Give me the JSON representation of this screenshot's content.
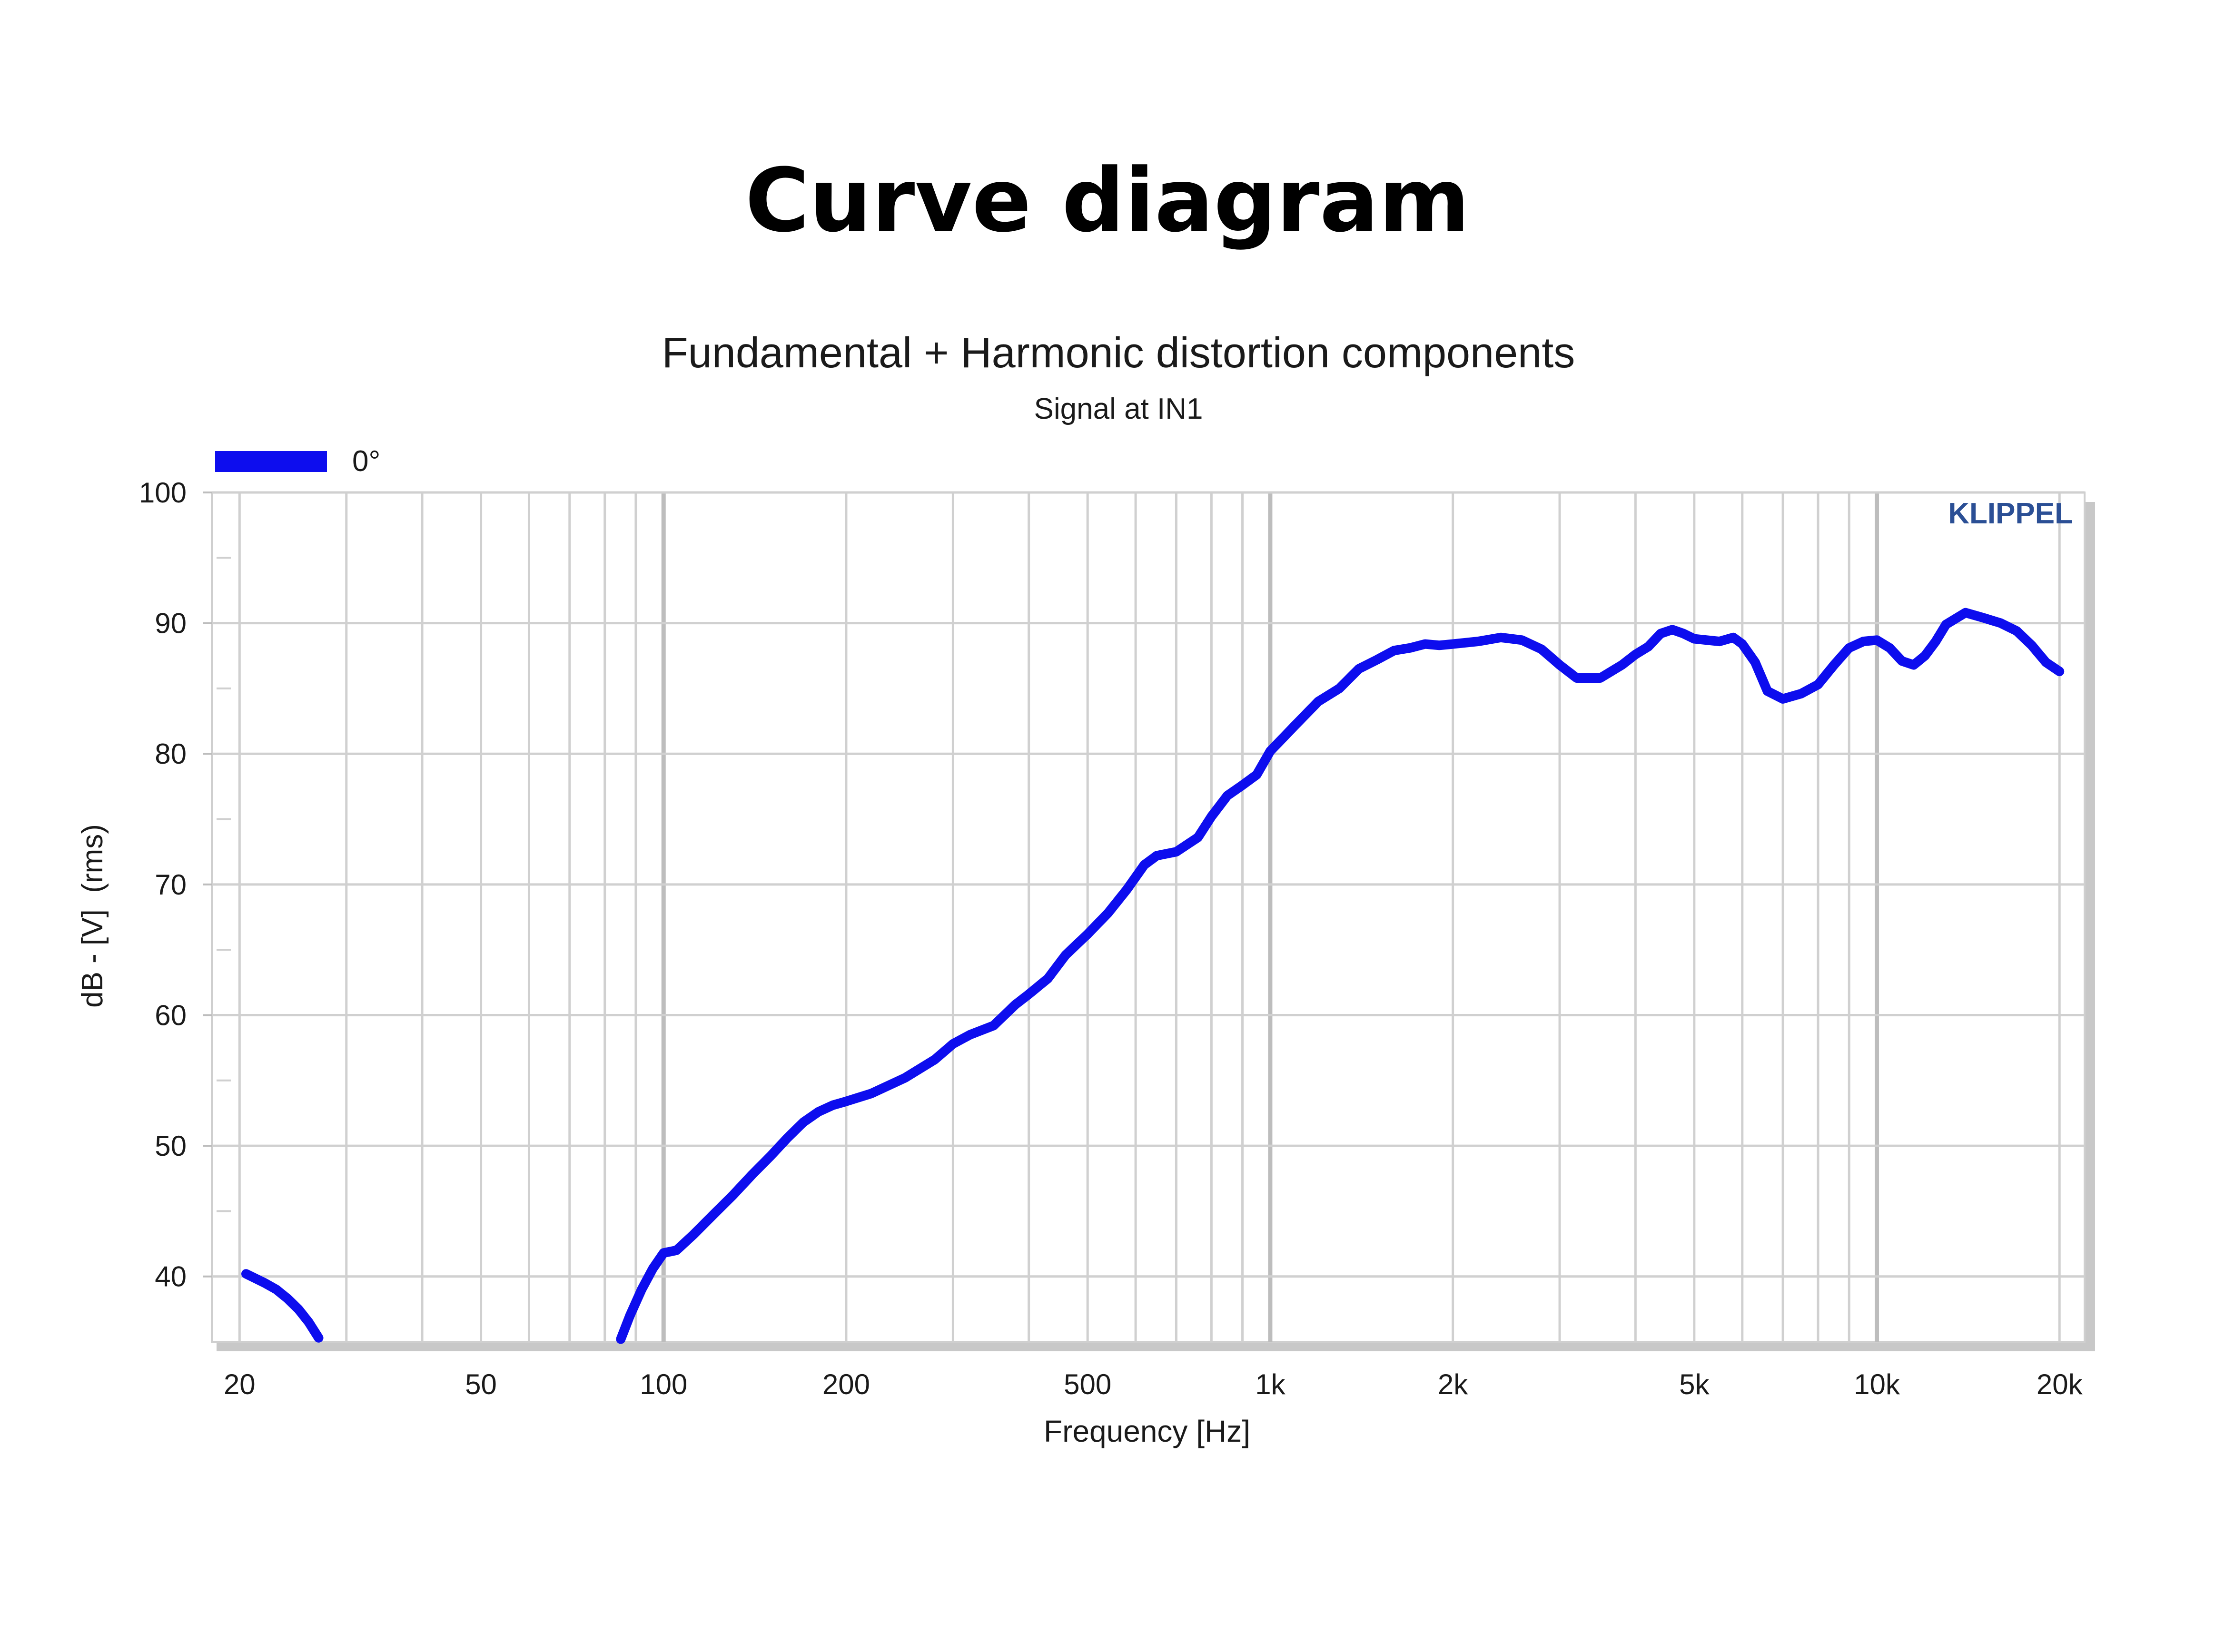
{
  "page": {
    "heading": "Curve diagram"
  },
  "colors": {
    "series": "#0d0dee",
    "grid": "#d0d0d0",
    "decade_grid": "#bdbdbd",
    "frame_shadow": "#c8c8c8",
    "watermark": "#2b4f95"
  },
  "chart_data": {
    "type": "line",
    "title": "Fundamental + Harmonic distortion components",
    "subtitle": "Signal at IN1",
    "xlabel": "Frequency [Hz]",
    "ylabel": "dB - [V]  (rms)",
    "x_scale": "log",
    "xlim": [
      18,
      22000
    ],
    "ylim": [
      35,
      100
    ],
    "x_ticks": [
      {
        "value": 20,
        "label": "20"
      },
      {
        "value": 50,
        "label": "50"
      },
      {
        "value": 100,
        "label": "100"
      },
      {
        "value": 200,
        "label": "200"
      },
      {
        "value": 500,
        "label": "500"
      },
      {
        "value": 1000,
        "label": "1k"
      },
      {
        "value": 2000,
        "label": "2k"
      },
      {
        "value": 5000,
        "label": "5k"
      },
      {
        "value": 10000,
        "label": "10k"
      },
      {
        "value": 20000,
        "label": "20k"
      }
    ],
    "y_ticks": [
      {
        "value": 40,
        "label": "40"
      },
      {
        "value": 50,
        "label": "50"
      },
      {
        "value": 60,
        "label": "60"
      },
      {
        "value": 70,
        "label": "70"
      },
      {
        "value": 80,
        "label": "80"
      },
      {
        "value": 90,
        "label": "90"
      },
      {
        "value": 100,
        "label": "100"
      }
    ],
    "grid": true,
    "legend_position": "top-left",
    "watermark": "KLIPPEL",
    "series": [
      {
        "name": "0°",
        "segments": [
          {
            "x": [
              20.5,
              22,
              23,
              24,
              25,
              26,
              27
            ],
            "y": [
              40.2,
              39.5,
              39.0,
              38.3,
              37.5,
              36.5,
              35.3
            ]
          },
          {
            "x": [
              85,
              88,
              92,
              96,
              100,
              105,
              112,
              120,
              130,
              140,
              150,
              160,
              170,
              180,
              190,
              200,
              220,
              250,
              280,
              300,
              320,
              350,
              380,
              400,
              430,
              460,
              500,
              540,
              580,
              620,
              650,
              700,
              760,
              800,
              850,
              900,
              950,
              1000,
              1100,
              1200,
              1300,
              1400,
              1500,
              1600,
              1700,
              1800,
              1900,
              2000,
              2200,
              2400,
              2600,
              2800,
              3000,
              3200,
              3500,
              3800,
              4000,
              4200,
              4400,
              4600,
              4800,
              5000,
              5500,
              5800,
              6000,
              6300,
              6600,
              7000,
              7500,
              8000,
              8500,
              9000,
              9500,
              10000,
              10500,
              11000,
              11500,
              12000,
              12500,
              13000,
              14000,
              15000,
              16000,
              17000,
              18000,
              19000,
              20000
            ],
            "y": [
              35.2,
              37.0,
              39.0,
              40.6,
              41.8,
              42.0,
              43.2,
              44.6,
              46.2,
              47.8,
              49.2,
              50.6,
              51.8,
              52.6,
              53.1,
              53.4,
              54.0,
              55.2,
              56.6,
              57.8,
              58.5,
              59.2,
              60.8,
              61.6,
              62.8,
              64.6,
              66.2,
              67.8,
              69.6,
              71.5,
              72.2,
              72.5,
              73.6,
              75.2,
              76.8,
              77.6,
              78.4,
              80.2,
              82.2,
              84.0,
              85.0,
              86.5,
              87.2,
              87.9,
              88.1,
              88.4,
              88.3,
              88.4,
              88.6,
              88.9,
              88.7,
              88.0,
              86.8,
              85.8,
              85.8,
              86.8,
              87.6,
              88.2,
              89.2,
              89.5,
              89.2,
              88.8,
              88.6,
              88.9,
              88.4,
              87.0,
              84.8,
              84.2,
              84.6,
              85.3,
              86.8,
              88.1,
              88.6,
              88.7,
              88.1,
              87.1,
              86.8,
              87.5,
              88.6,
              89.9,
              90.8,
              90.4,
              90.0,
              89.4,
              88.3,
              87.0,
              86.3
            ]
          }
        ]
      }
    ]
  }
}
